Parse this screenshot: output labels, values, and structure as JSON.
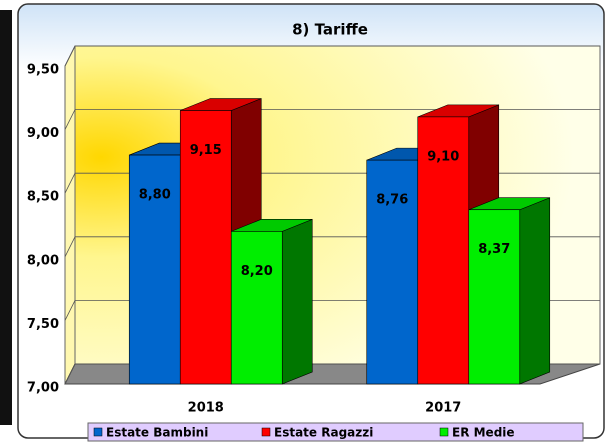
{
  "chart_data": {
    "type": "bar3d",
    "title": "8) Tariffe",
    "categories": [
      "2018",
      "2017"
    ],
    "series": [
      {
        "name": "Estate Bambini",
        "color": "#0066cc",
        "values": [
          8.8,
          8.76
        ],
        "value_labels": [
          "8,80",
          "8,76"
        ]
      },
      {
        "name": "Estate Ragazzi",
        "color": "#ff0000",
        "values": [
          9.15,
          9.1
        ],
        "value_labels": [
          "9,15",
          "9,10"
        ]
      },
      {
        "name": "ER Medie",
        "color": "#00ee00",
        "values": [
          8.2,
          8.37
        ],
        "value_labels": [
          "8,20",
          "8,37"
        ]
      }
    ],
    "ylim": [
      7.0,
      9.5
    ],
    "yticks": [
      {
        "value": 7.0,
        "label": "7,00"
      },
      {
        "value": 7.5,
        "label": "7,50"
      },
      {
        "value": 8.0,
        "label": "8,00"
      },
      {
        "value": 8.5,
        "label": "8,50"
      },
      {
        "value": 9.0,
        "label": "9,00"
      },
      {
        "value": 9.5,
        "label": "9,50"
      }
    ],
    "grid": true,
    "legend": "bottom"
  }
}
